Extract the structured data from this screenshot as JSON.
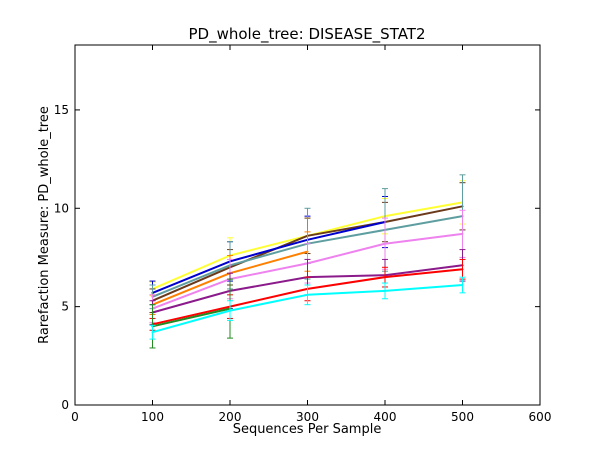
{
  "chart_data": {
    "type": "line",
    "title": "PD_whole_tree: DISEASE_STAT2",
    "xlabel": "Sequences Per Sample",
    "ylabel": "Rarefaction Measure: PD_whole_tree",
    "xlim": [
      0,
      600
    ],
    "ylim": [
      0,
      18.3
    ],
    "xticks": [
      "0",
      "100",
      "200",
      "300",
      "400",
      "500",
      "600"
    ],
    "yticks": [
      "0",
      "5",
      "10",
      "15"
    ],
    "grid": false,
    "legend": "none",
    "series": [
      {
        "color": "#ffff33",
        "x": [
          100,
          200,
          300,
          400,
          500
        ],
        "y": [
          5.9,
          7.6,
          8.6,
          9.6,
          10.3
        ],
        "err": [
          0.35,
          0.9,
          0.9,
          0.9,
          1.1
        ]
      },
      {
        "color": "#6b3a1a",
        "x": [
          100,
          200,
          300,
          400,
          500
        ],
        "y": [
          5.3,
          7.0,
          8.6,
          9.3,
          10.1
        ],
        "err": [
          0.6,
          0.9,
          0.9,
          1.0,
          1.2
        ]
      },
      {
        "color": "#0000cc",
        "x": [
          100,
          200,
          300,
          400
        ],
        "y": [
          5.7,
          7.3,
          8.4,
          9.3
        ],
        "err": [
          0.6,
          1.0,
          1.2,
          1.3
        ]
      },
      {
        "color": "#5f9ea0",
        "x": [
          100,
          200,
          300,
          400,
          500
        ],
        "y": [
          5.5,
          7.1,
          8.2,
          8.9,
          9.6
        ],
        "err": [
          0.6,
          1.2,
          1.8,
          2.1,
          2.1
        ]
      },
      {
        "color": "#ff8000",
        "x": [
          100,
          200,
          300
        ],
        "y": [
          5.1,
          6.7,
          7.8
        ],
        "err": [
          0.5,
          0.9,
          1.0
        ]
      },
      {
        "color": "#ee82ee",
        "x": [
          100,
          200,
          300,
          400,
          500
        ],
        "y": [
          4.9,
          6.4,
          7.2,
          8.2,
          8.7
        ],
        "err": [
          0.7,
          1.0,
          1.0,
          1.3,
          1.2
        ]
      },
      {
        "color": "#8b1a8b",
        "x": [
          100,
          200,
          300,
          400,
          500
        ],
        "y": [
          4.7,
          5.8,
          6.5,
          6.6,
          7.1
        ],
        "err": [
          0.6,
          0.9,
          0.9,
          0.8,
          0.8
        ]
      },
      {
        "color": "#ff0000",
        "x": [
          100,
          200,
          300,
          400,
          500
        ],
        "y": [
          4.1,
          5.0,
          5.9,
          6.5,
          6.9
        ],
        "err": [
          0.3,
          0.6,
          0.6,
          0.5,
          0.5
        ]
      },
      {
        "color": "#228b22",
        "x": [
          100,
          200
        ],
        "y": [
          4.0,
          4.9
        ],
        "err": [
          1.1,
          1.5
        ]
      },
      {
        "color": "#00ffff",
        "x": [
          100,
          200,
          300,
          400,
          500
        ],
        "y": [
          3.7,
          4.8,
          5.6,
          5.8,
          6.1
        ],
        "err": [
          0.35,
          0.5,
          0.5,
          0.4,
          0.4
        ]
      }
    ]
  }
}
